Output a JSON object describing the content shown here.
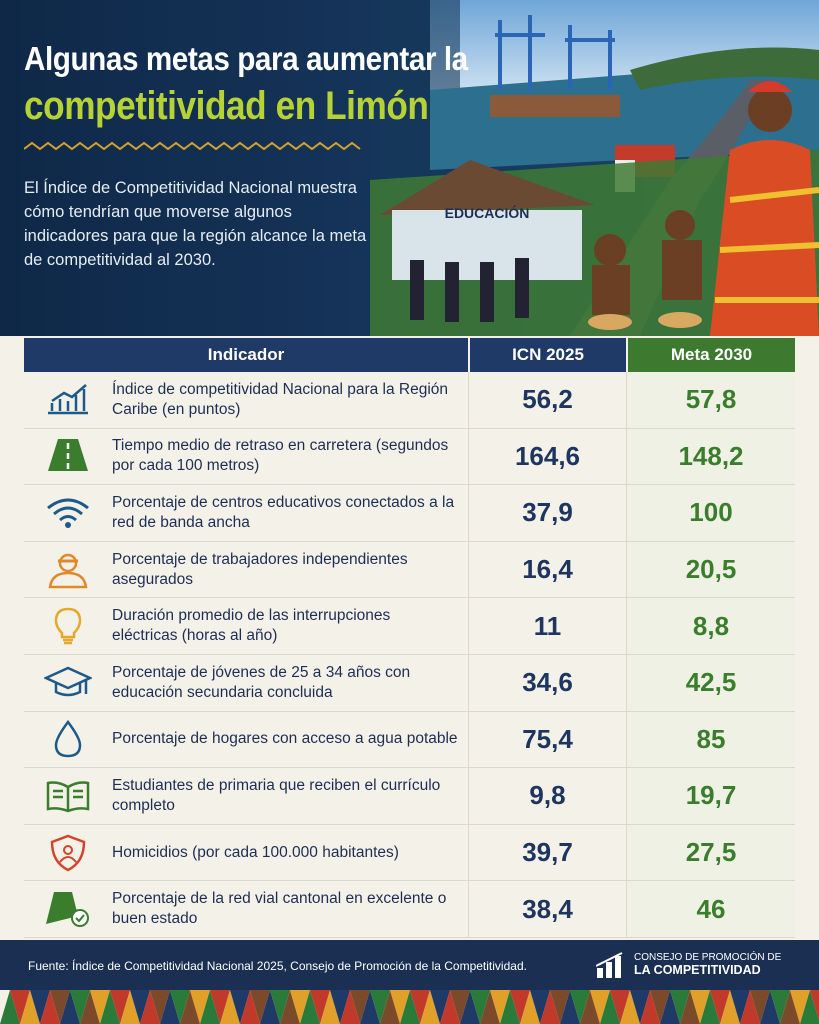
{
  "header": {
    "title_line1": "Algunas metas para aumentar la",
    "title_line2": "competitividad en Limón",
    "intro": "El Índice de Competitividad Nacional muestra cómo tendrían que moverse algunos indicadores para que la región alcance la meta de competitividad al 2030.",
    "image_sign": "EDUCACIÓN"
  },
  "table": {
    "columns": [
      "Indicador",
      "ICN 2025",
      "Meta 2030"
    ],
    "rows": [
      [
        "Índice de competitividad Nacional para la Región Caribe (en puntos)",
        "56,2",
        "57,8"
      ],
      [
        "Tiempo medio de retraso en carretera (segundos por cada 100 metros)",
        "164,6",
        "148,2"
      ],
      [
        "Porcentaje de centros educativos conectados a la red de banda ancha",
        "37,9",
        "100"
      ],
      [
        "Porcentaje de trabajadores independientes asegurados",
        "16,4",
        "20,5"
      ],
      [
        "Duración promedio de las interrupciones eléctricas (horas al año)",
        "11",
        "8,8"
      ],
      [
        "Porcentaje de jóvenes de 25 a 34 años con educación secundaria concluida",
        "34,6",
        "42,5"
      ],
      [
        "Porcentaje de hogares con acceso a agua potable",
        "75,4",
        "85"
      ],
      [
        "Estudiantes de primaria que reciben el currículo completo",
        "9,8",
        "19,7"
      ],
      [
        "Homicidios (por cada 100.000 habitantes)",
        "39,7",
        "27,5"
      ],
      [
        "Porcentaje de la red vial cantonal en excelente o buen estado",
        "38,4",
        "46"
      ]
    ]
  },
  "footer": {
    "source": "Fuente: Índice de Competitividad Nacional 2025, Consejo de Promoción de la Competitividad.",
    "logo_line1": "CONSEJO DE PROMOCIÓN DE",
    "logo_line2": "LA COMPETITIVIDAD"
  }
}
